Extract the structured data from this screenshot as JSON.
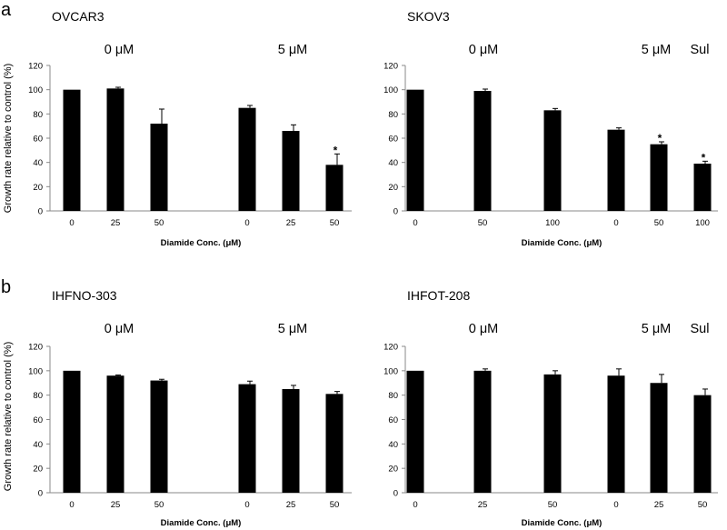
{
  "figure": {
    "panel_letters": [
      "a",
      "b"
    ],
    "ylabel": "Growth rate relative to control (%)"
  },
  "chart_data": [
    {
      "type": "bar",
      "title": "OVCAR3",
      "group_labels": [
        "0 μM",
        "5 μM"
      ],
      "categories": [
        "0",
        "25",
        "50",
        "0",
        "25",
        "50"
      ],
      "values": [
        100,
        101,
        72,
        85,
        66,
        38
      ],
      "errors": [
        0,
        1,
        12,
        2,
        5,
        9
      ],
      "significant": [
        false,
        false,
        false,
        false,
        false,
        true
      ],
      "xlabel": "Diamide Conc. (μM)",
      "ylabel": "Growth rate relative to control (%)",
      "ylim": [
        0,
        120
      ],
      "yticks": [
        0,
        20,
        40,
        60,
        80,
        100,
        120
      ]
    },
    {
      "type": "bar",
      "title": "SKOV3",
      "group_labels": [
        "0 μM",
        "5 μM",
        "Sul"
      ],
      "categories": [
        "0",
        "50",
        "100",
        "0",
        "50",
        "100"
      ],
      "values": [
        100,
        99,
        83,
        67,
        55,
        39
      ],
      "errors": [
        0,
        1.5,
        1.5,
        1.5,
        2,
        2
      ],
      "significant": [
        false,
        false,
        false,
        false,
        true,
        true
      ],
      "xlabel": "Diamide Conc. (μM)",
      "ylim": [
        0,
        120
      ],
      "yticks": [
        0,
        20,
        40,
        60,
        80,
        100,
        120
      ]
    },
    {
      "type": "bar",
      "title": "IHFNO-303",
      "group_labels": [
        "0 μM",
        "5 μM"
      ],
      "categories": [
        "0",
        "25",
        "50",
        "0",
        "25",
        "50"
      ],
      "values": [
        100,
        96,
        92,
        89,
        85,
        81
      ],
      "errors": [
        0,
        0.5,
        1,
        2.5,
        3,
        2
      ],
      "significant": [
        false,
        false,
        false,
        false,
        false,
        false
      ],
      "xlabel": "Diamide Conc. (μM)",
      "ylabel": "Growth rate relative to control (%)",
      "ylim": [
        0,
        120
      ],
      "yticks": [
        0,
        20,
        40,
        60,
        80,
        100,
        120
      ]
    },
    {
      "type": "bar",
      "title": "IHFOT-208",
      "group_labels": [
        "0 μM",
        "5 μM",
        "Sul"
      ],
      "categories": [
        "0",
        "25",
        "50",
        "0",
        "25",
        "50"
      ],
      "values": [
        100,
        100,
        97,
        96,
        90,
        80
      ],
      "errors": [
        0,
        1.5,
        3,
        5.5,
        7,
        5
      ],
      "significant": [
        false,
        false,
        false,
        false,
        false,
        false
      ],
      "xlabel": "Diamide Conc. (μM)",
      "ylim": [
        0,
        120
      ],
      "yticks": [
        0,
        20,
        40,
        60,
        80,
        100,
        120
      ]
    }
  ]
}
